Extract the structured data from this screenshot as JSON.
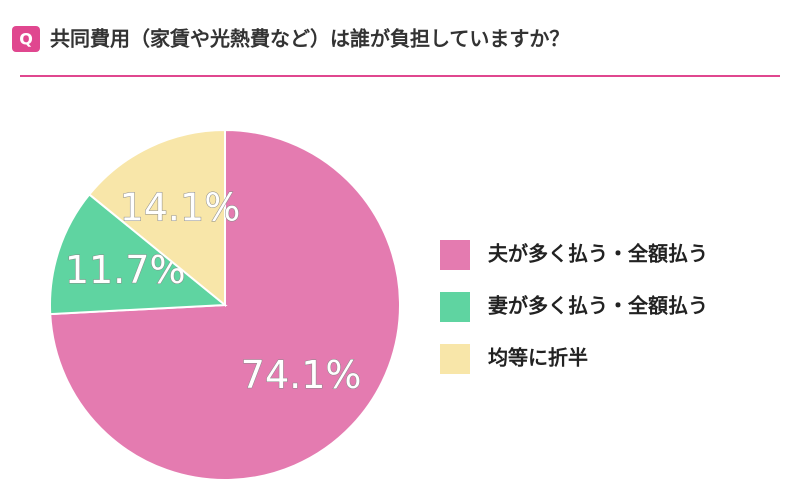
{
  "chart_data": {
    "type": "pie",
    "question_label": "Q",
    "title": "共同費用（家賃や光熱費など）は誰が負担していますか？",
    "categories": [
      "夫が多く払う・全額払う",
      "妻が多く払う・全額払う",
      "均等に折半"
    ],
    "values": [
      74.1,
      11.7,
      14.1
    ],
    "value_labels": [
      "74.1%",
      "11.7%",
      "14.1%"
    ],
    "colors": [
      "#e47bb0",
      "#5fd4a1",
      "#f8e6a9"
    ],
    "legend": "right"
  }
}
